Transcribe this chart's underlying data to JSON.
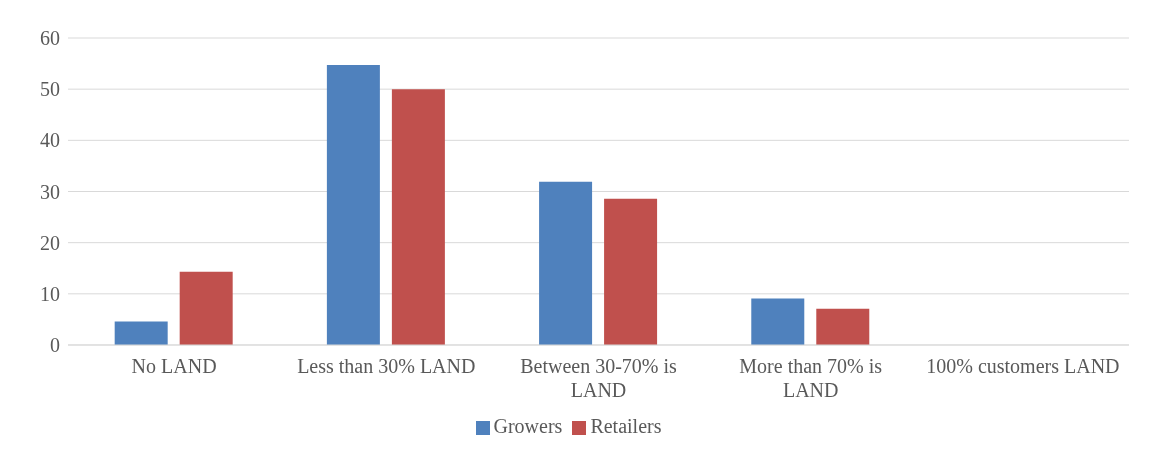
{
  "chart_data": {
    "type": "bar",
    "categories": [
      "No LAND",
      "Less than 30% LAND",
      "Between 30-70% is LAND",
      "More than 70% is LAND",
      "100% customers LAND"
    ],
    "series": [
      {
        "name": "Growers",
        "color": "#4f81bd",
        "values": [
          4.6,
          54.7,
          31.9,
          9.1,
          0
        ]
      },
      {
        "name": "Retailers",
        "color": "#c0504d",
        "values": [
          14.3,
          50,
          28.6,
          7.1,
          0
        ]
      }
    ],
    "ylim": [
      0,
      60
    ],
    "yticks": [
      0,
      10,
      20,
      30,
      40,
      50,
      60
    ],
    "grid": "y",
    "legend": "bottom"
  }
}
